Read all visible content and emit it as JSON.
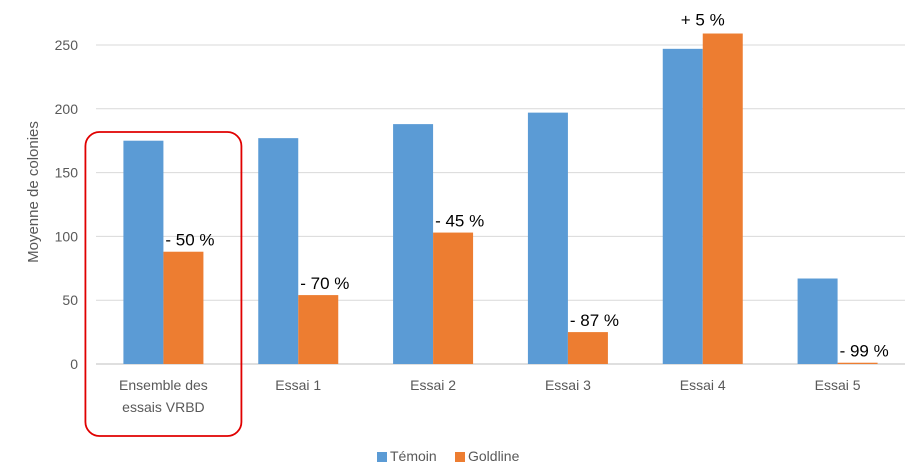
{
  "chart_data": {
    "type": "bar",
    "title": "",
    "xlabel": "",
    "ylabel": "Moyenne de colonies",
    "ylim": [
      0,
      250
    ],
    "yticks": [
      0,
      50,
      100,
      150,
      200,
      250
    ],
    "grid": true,
    "legend_position": "bottom",
    "categories": [
      [
        "Ensemble des",
        "essais VRBD"
      ],
      [
        "Essai 1"
      ],
      [
        "Essai 2"
      ],
      [
        "Essai 3"
      ],
      [
        "Essai 4"
      ],
      [
        "Essai 5"
      ]
    ],
    "series": [
      {
        "name": "Témoin",
        "color": "#5B9BD5",
        "values": [
          175,
          177,
          188,
          197,
          247,
          67
        ]
      },
      {
        "name": "Goldline",
        "color": "#ED7D31",
        "values": [
          88,
          54,
          103,
          25,
          259,
          1
        ]
      }
    ],
    "data_labels": [
      "- 50 %",
      "- 70 %",
      "- 45 %",
      "- 87 %",
      "+ 5 %",
      "- 99 %"
    ],
    "highlight": {
      "category_index": 0,
      "color": "#E00000"
    }
  }
}
